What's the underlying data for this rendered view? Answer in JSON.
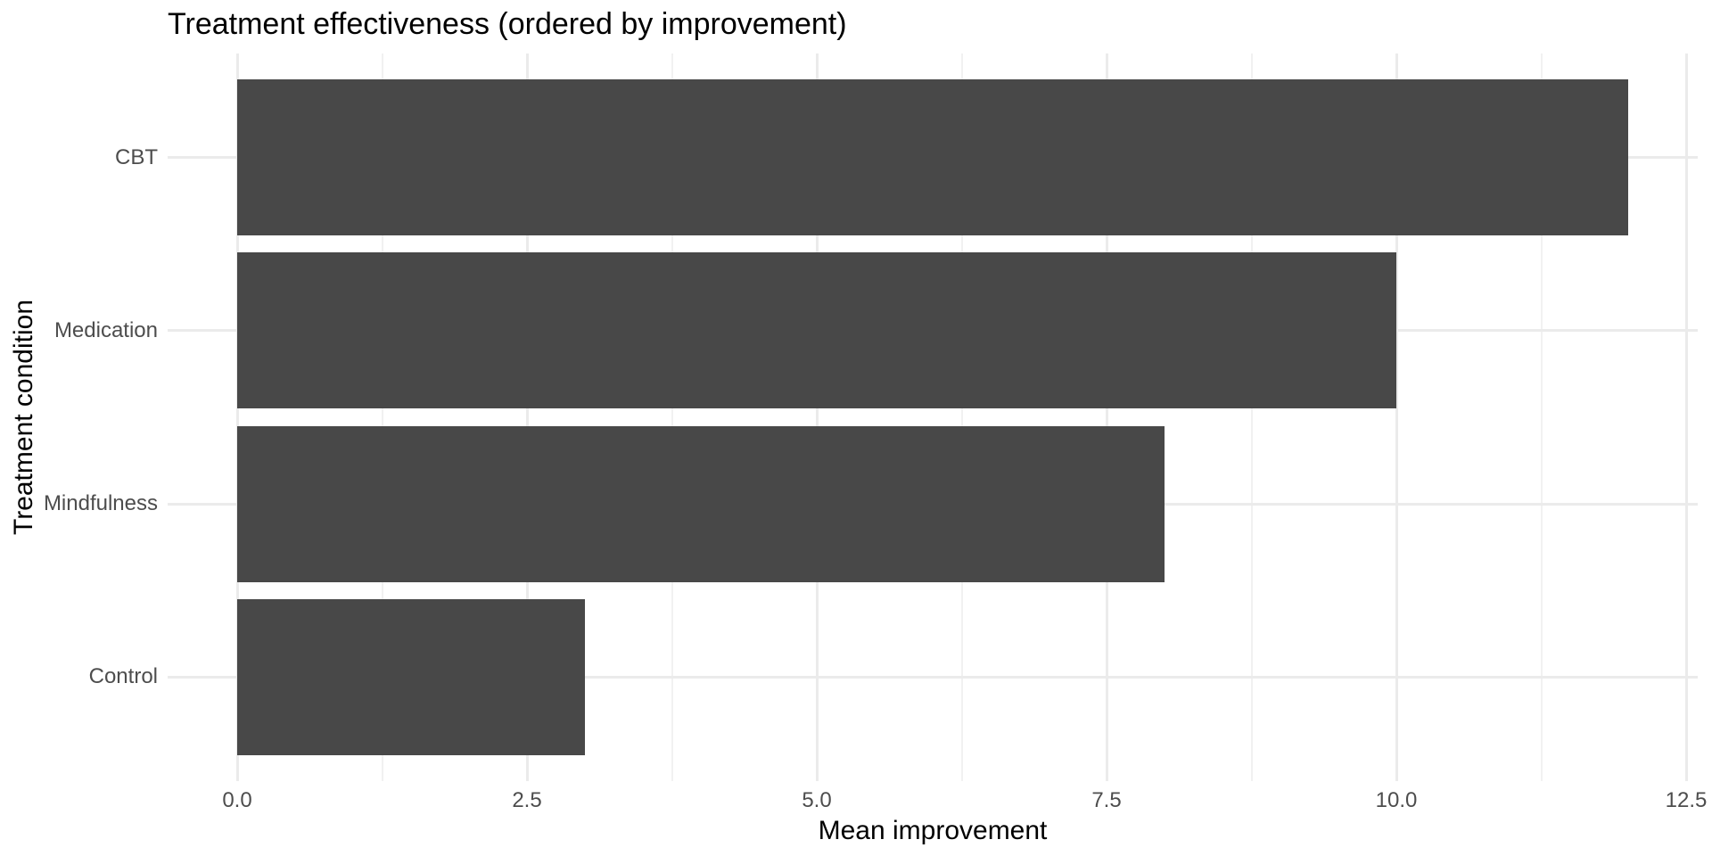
{
  "chart_data": {
    "type": "bar",
    "orientation": "horizontal",
    "title": "Treatment effectiveness (ordered by improvement)",
    "xlabel": "Mean improvement",
    "ylabel": "Treatment condition",
    "categories": [
      "CBT",
      "Medication",
      "Mindfulness",
      "Control"
    ],
    "values": [
      12,
      10,
      8,
      3
    ],
    "x_ticks": [
      0,
      2.5,
      5,
      7.5,
      10,
      12.5
    ],
    "x_tick_labels": [
      "0.0",
      "2.5",
      "5.0",
      "7.5",
      "10.0",
      "12.5"
    ],
    "x_minor_ticks": [
      1.25,
      3.75,
      6.25,
      8.75,
      11.25
    ],
    "xlim": [
      -0.6,
      12.6
    ],
    "y_inner_lim": [
      0.4,
      4.6
    ],
    "bar_width_fraction": 0.9,
    "grid": "x major+minor, y major only",
    "legend": "none",
    "colors": {
      "bar": "#484848",
      "grid_major": "#EBEBEB",
      "grid_minor": "#F1F1F1",
      "axis_text": "#4D4D4D",
      "title_text": "#000000",
      "background": "#FFFFFF"
    }
  }
}
